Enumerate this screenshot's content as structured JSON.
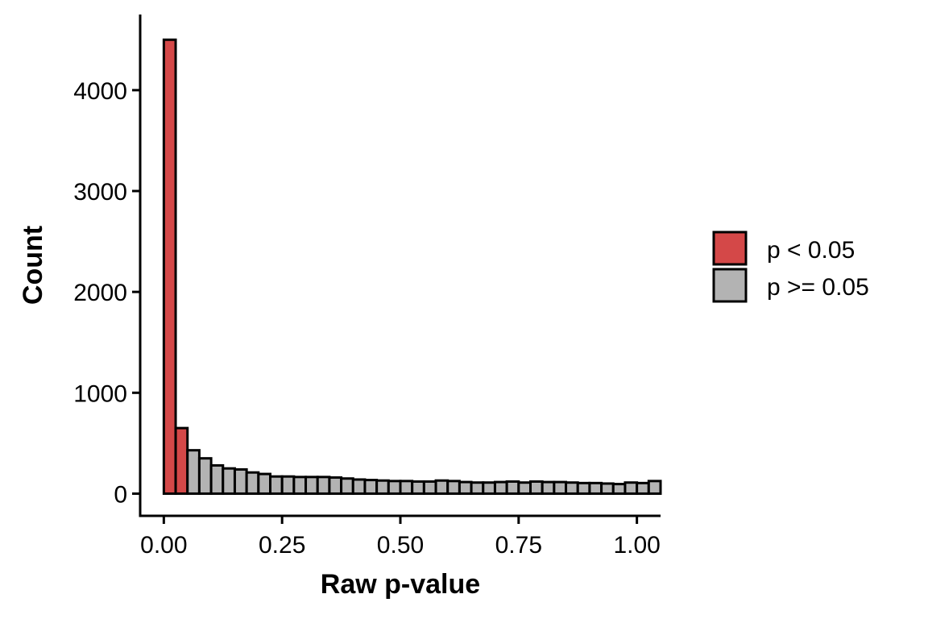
{
  "chart_data": {
    "type": "bar",
    "xlabel": "Raw p-value",
    "ylabel": "Count",
    "xlim": [
      -0.05,
      1.05
    ],
    "ylim": [
      -220,
      4750
    ],
    "x_ticks": [
      "0.00",
      "0.25",
      "0.50",
      "0.75",
      "1.00"
    ],
    "y_ticks": [
      "0",
      "1000",
      "2000",
      "3000",
      "4000"
    ],
    "bin_width": 0.025,
    "bin_start": 0.0,
    "values": [
      4500,
      650,
      430,
      350,
      280,
      250,
      240,
      210,
      195,
      170,
      170,
      165,
      165,
      165,
      160,
      150,
      140,
      135,
      130,
      125,
      125,
      120,
      120,
      130,
      125,
      115,
      110,
      110,
      115,
      120,
      110,
      120,
      115,
      115,
      110,
      105,
      105,
      100,
      95,
      110,
      105,
      125
    ],
    "groups": [
      0,
      0,
      1,
      1,
      1,
      1,
      1,
      1,
      1,
      1,
      1,
      1,
      1,
      1,
      1,
      1,
      1,
      1,
      1,
      1,
      1,
      1,
      1,
      1,
      1,
      1,
      1,
      1,
      1,
      1,
      1,
      1,
      1,
      1,
      1,
      1,
      1,
      1,
      1,
      1,
      1,
      1
    ],
    "legend": {
      "position": "right",
      "entries": [
        {
          "label": "p < 0.05",
          "color": "#d44848"
        },
        {
          "label": "p >= 0.05",
          "color": "#b3b3b3"
        }
      ]
    },
    "grid": false
  }
}
